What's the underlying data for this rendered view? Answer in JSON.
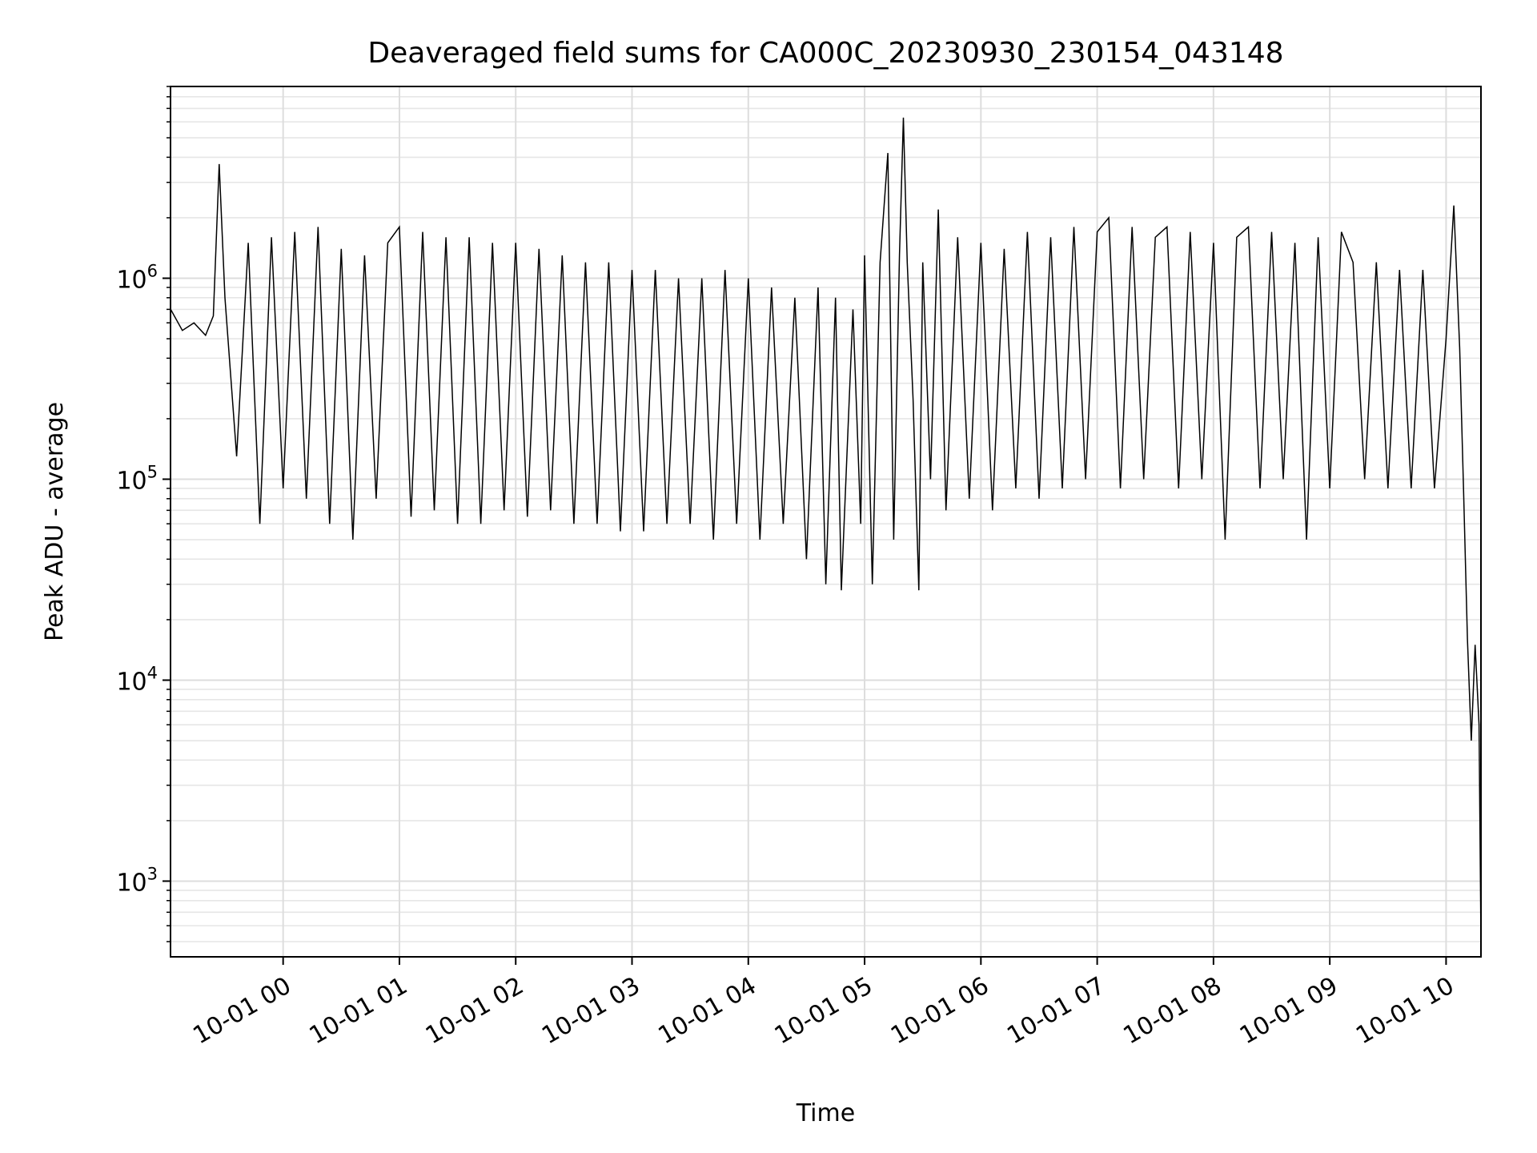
{
  "chart_data": {
    "type": "line",
    "title": "Deaveraged field sums for CA000C_20230930_230154_043148",
    "xlabel": "Time",
    "ylabel": "Peak ADU - average",
    "x_axis": {
      "kind": "time",
      "range": [
        "2023-09-30T23:01:54",
        "2023-10-01T10:18:00"
      ],
      "tick_labels": [
        "10-01 00",
        "10-01 01",
        "10-01 02",
        "10-01 03",
        "10-01 04",
        "10-01 05",
        "10-01 06",
        "10-01 07",
        "10-01 08",
        "10-01 09",
        "10-01 10"
      ]
    },
    "y_axis": {
      "scale": "log",
      "range": [
        420,
        9000000
      ],
      "tick_values": [
        1000,
        10000,
        100000,
        1000000
      ]
    },
    "grid": true,
    "legend": "none",
    "line_color": "#000000",
    "series": [
      {
        "x": [
          "2023-09-30T23:02",
          "2023-09-30T23:08",
          "2023-09-30T23:14",
          "2023-09-30T23:20",
          "2023-09-30T23:24",
          "2023-09-30T23:27",
          "2023-09-30T23:30",
          "2023-09-30T23:36",
          "2023-09-30T23:42",
          "2023-09-30T23:48",
          "2023-09-30T23:54",
          "2023-10-01T00:00",
          "2023-10-01T00:06",
          "2023-10-01T00:12",
          "2023-10-01T00:18",
          "2023-10-01T00:24",
          "2023-10-01T00:30",
          "2023-10-01T00:36",
          "2023-10-01T00:42",
          "2023-10-01T00:48",
          "2023-10-01T00:54",
          "2023-10-01T01:00",
          "2023-10-01T01:06",
          "2023-10-01T01:12",
          "2023-10-01T01:18",
          "2023-10-01T01:24",
          "2023-10-01T01:30",
          "2023-10-01T01:36",
          "2023-10-01T01:42",
          "2023-10-01T01:48",
          "2023-10-01T01:54",
          "2023-10-01T02:00",
          "2023-10-01T02:06",
          "2023-10-01T02:12",
          "2023-10-01T02:18",
          "2023-10-01T02:24",
          "2023-10-01T02:30",
          "2023-10-01T02:36",
          "2023-10-01T02:42",
          "2023-10-01T02:48",
          "2023-10-01T02:54",
          "2023-10-01T03:00",
          "2023-10-01T03:06",
          "2023-10-01T03:12",
          "2023-10-01T03:18",
          "2023-10-01T03:24",
          "2023-10-01T03:30",
          "2023-10-01T03:36",
          "2023-10-01T03:42",
          "2023-10-01T03:48",
          "2023-10-01T03:54",
          "2023-10-01T04:00",
          "2023-10-01T04:06",
          "2023-10-01T04:12",
          "2023-10-01T04:18",
          "2023-10-01T04:24",
          "2023-10-01T04:30",
          "2023-10-01T04:36",
          "2023-10-01T04:40",
          "2023-10-01T04:45",
          "2023-10-01T04:48",
          "2023-10-01T04:54",
          "2023-10-01T04:58",
          "2023-10-01T05:00",
          "2023-10-01T05:04",
          "2023-10-01T05:08",
          "2023-10-01T05:12",
          "2023-10-01T05:15",
          "2023-10-01T05:18",
          "2023-10-01T05:20",
          "2023-10-01T05:22",
          "2023-10-01T05:25",
          "2023-10-01T05:28",
          "2023-10-01T05:30",
          "2023-10-01T05:34",
          "2023-10-01T05:38",
          "2023-10-01T05:42",
          "2023-10-01T05:48",
          "2023-10-01T05:54",
          "2023-10-01T06:00",
          "2023-10-01T06:06",
          "2023-10-01T06:12",
          "2023-10-01T06:18",
          "2023-10-01T06:24",
          "2023-10-01T06:30",
          "2023-10-01T06:36",
          "2023-10-01T06:42",
          "2023-10-01T06:48",
          "2023-10-01T06:54",
          "2023-10-01T07:00",
          "2023-10-01T07:06",
          "2023-10-01T07:12",
          "2023-10-01T07:18",
          "2023-10-01T07:24",
          "2023-10-01T07:30",
          "2023-10-01T07:36",
          "2023-10-01T07:42",
          "2023-10-01T07:48",
          "2023-10-01T07:54",
          "2023-10-01T08:00",
          "2023-10-01T08:06",
          "2023-10-01T08:12",
          "2023-10-01T08:18",
          "2023-10-01T08:24",
          "2023-10-01T08:30",
          "2023-10-01T08:36",
          "2023-10-01T08:42",
          "2023-10-01T08:48",
          "2023-10-01T08:54",
          "2023-10-01T09:00",
          "2023-10-01T09:06",
          "2023-10-01T09:12",
          "2023-10-01T09:18",
          "2023-10-01T09:24",
          "2023-10-01T09:30",
          "2023-10-01T09:36",
          "2023-10-01T09:42",
          "2023-10-01T09:48",
          "2023-10-01T09:54",
          "2023-10-01T10:00",
          "2023-10-01T10:04",
          "2023-10-01T10:07",
          "2023-10-01T10:09",
          "2023-10-01T10:11",
          "2023-10-01T10:13",
          "2023-10-01T10:15",
          "2023-10-01T10:17",
          "2023-10-01T10:18"
        ],
        "y": [
          700000,
          550000,
          600000,
          520000,
          650000,
          3700000,
          800000,
          130000,
          1500000,
          60000,
          1600000,
          90000,
          1700000,
          80000,
          1800000,
          60000,
          1400000,
          50000,
          1300000,
          80000,
          1500000,
          1800000,
          65000,
          1700000,
          70000,
          1600000,
          60000,
          1600000,
          60000,
          1500000,
          70000,
          1500000,
          65000,
          1400000,
          70000,
          1300000,
          60000,
          1200000,
          60000,
          1200000,
          55000,
          1100000,
          55000,
          1100000,
          60000,
          1000000,
          60000,
          1000000,
          50000,
          1100000,
          60000,
          1000000,
          50000,
          900000,
          60000,
          800000,
          40000,
          900000,
          30000,
          800000,
          28000,
          700000,
          60000,
          1300000,
          30000,
          1200000,
          4200000,
          50000,
          1300000,
          6300000,
          1200000,
          250000,
          28000,
          1200000,
          100000,
          2200000,
          70000,
          1600000,
          80000,
          1500000,
          70000,
          1400000,
          90000,
          1700000,
          80000,
          1600000,
          90000,
          1800000,
          100000,
          1700000,
          2000000,
          90000,
          1800000,
          100000,
          1600000,
          1800000,
          90000,
          1700000,
          100000,
          1500000,
          50000,
          1600000,
          1800000,
          90000,
          1700000,
          100000,
          1500000,
          50000,
          1600000,
          90000,
          1700000,
          1200000,
          100000,
          1200000,
          90000,
          1100000,
          90000,
          1100000,
          90000,
          500000,
          2300000,
          450000,
          90000,
          16000,
          5000,
          15000,
          6000,
          500
        ]
      }
    ]
  }
}
